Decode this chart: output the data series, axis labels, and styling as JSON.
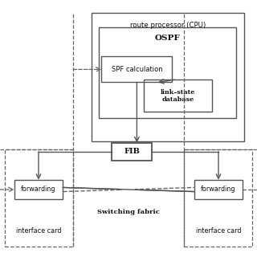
{
  "bg_color": "#ffffff",
  "box_color": "#555555",
  "dashed_color": "#666666",
  "title_cpu": "route processor (CPU)",
  "title_ospf": "OSPF",
  "label_spf": "SPF calculation",
  "label_db": "link–state\ndatabase",
  "label_fib": "FIB",
  "label_fwd1": "forwarding",
  "label_fwd2": "forwarding",
  "label_iface1": "interface card",
  "label_iface2": "interface card",
  "label_switch": "Switching fabric"
}
